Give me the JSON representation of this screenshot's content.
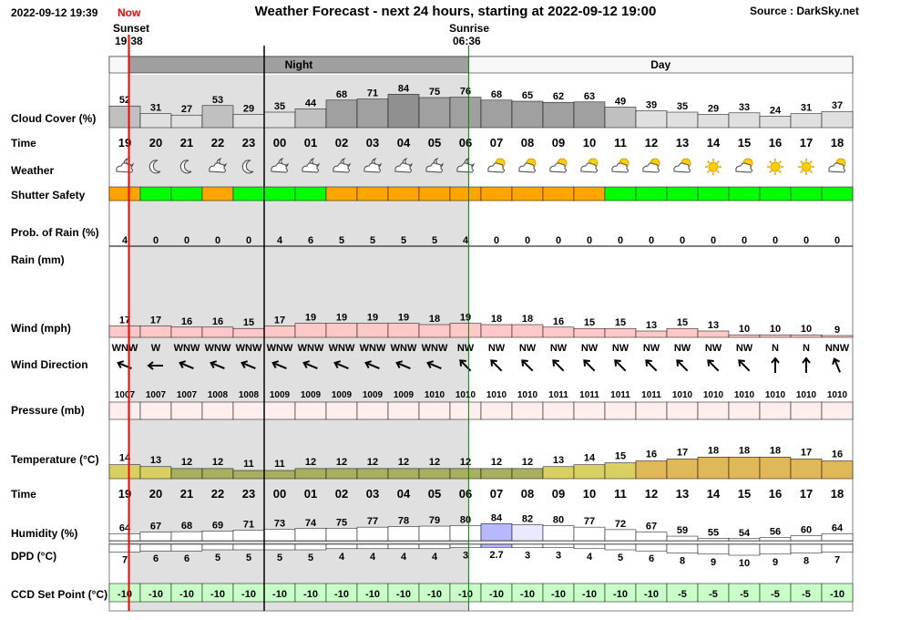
{
  "header": {
    "datetime": "2022-09-12 19:39",
    "now_label": "Now",
    "title": "Weather Forecast - next 24 hours, starting at 2022-09-12 19:00",
    "source": "Source : DarkSky.net",
    "sunset_label": "Sunset",
    "sunset_time": "19:38",
    "sunrise_label": "Sunrise",
    "sunrise_time": "06:36"
  },
  "bands": {
    "night_label": "Night",
    "day_label": "Day"
  },
  "row_labels": {
    "cloud": "Cloud Cover (%)",
    "time": "Time",
    "weather": "Weather",
    "shutter": "Shutter Safety",
    "rain_prob": "Prob. of Rain (%)",
    "rain": "Rain (mm)",
    "wind": "Wind (mph)",
    "wind_dir": "Wind Direction",
    "pressure": "Pressure (mb)",
    "temperature": "Temperature (°C)",
    "time2": "Time",
    "humidity": "Humidity (%)",
    "dpd": "DPD (°C)",
    "ccd": "CCD Set Point (°C)"
  },
  "colors": {
    "shutter_safe": "#00ff00",
    "shutter_caution": "#ffa500",
    "night_shade": "#e0e0e0",
    "night_band": "#a0a0a0",
    "day_band": "#f8f8f8",
    "now_line": "#ff0000",
    "sunrise_line": "#008000",
    "wind_fill": "#ffc8c8",
    "pressure_fill": "#ffeeee",
    "ccd_fill": "#c8ffc8",
    "temp_cool": "#a8b060",
    "temp_mild": "#d8d060",
    "temp_warm": "#e0b858"
  },
  "chart_data": {
    "type": "table",
    "hours": [
      "19",
      "20",
      "21",
      "22",
      "23",
      "00",
      "01",
      "02",
      "03",
      "04",
      "05",
      "06",
      "07",
      "08",
      "09",
      "10",
      "11",
      "12",
      "13",
      "14",
      "15",
      "16",
      "17",
      "18"
    ],
    "cloud_cover": [
      52,
      31,
      27,
      53,
      29,
      35,
      44,
      68,
      71,
      84,
      75,
      76,
      68,
      65,
      62,
      63,
      49,
      39,
      35,
      29,
      33,
      24,
      31,
      37
    ],
    "weather_icons": [
      "partly-cloudy-night",
      "clear-night",
      "clear-night",
      "partly-cloudy-night",
      "clear-night",
      "partly-cloudy-night",
      "partly-cloudy-night",
      "partly-cloudy-night",
      "partly-cloudy-night",
      "partly-cloudy-night",
      "partly-cloudy-night",
      "partly-cloudy-night",
      "partly-cloudy-day",
      "partly-cloudy-day",
      "partly-cloudy-day",
      "partly-cloudy-day",
      "partly-cloudy-day",
      "partly-cloudy-day",
      "partly-cloudy-day",
      "clear-day",
      "partly-cloudy-day",
      "clear-day",
      "clear-day",
      "partly-cloudy-day"
    ],
    "shutter_safety": [
      "caution",
      "safe",
      "safe",
      "caution",
      "safe",
      "safe",
      "safe",
      "caution",
      "caution",
      "caution",
      "caution",
      "caution",
      "caution",
      "caution",
      "caution",
      "caution",
      "safe",
      "safe",
      "safe",
      "safe",
      "safe",
      "safe",
      "safe",
      "safe"
    ],
    "rain_probability": [
      4,
      0,
      0,
      0,
      0,
      4,
      6,
      5,
      5,
      5,
      5,
      4,
      0,
      0,
      0,
      0,
      0,
      0,
      0,
      0,
      0,
      0,
      0,
      0
    ],
    "rain_mm": [
      0,
      0,
      0,
      0,
      0,
      0,
      0,
      0,
      0,
      0,
      0,
      0,
      0,
      0,
      0,
      0,
      0,
      0,
      0,
      0,
      0,
      0,
      0,
      0
    ],
    "wind_mph": [
      17,
      17,
      16,
      16,
      15,
      17,
      19,
      19,
      19,
      19,
      18,
      19,
      18,
      18,
      16,
      15,
      15,
      13,
      15,
      13,
      10,
      10,
      10,
      9
    ],
    "wind_direction": [
      "WNW",
      "W",
      "WNW",
      "WNW",
      "WNW",
      "WNW",
      "WNW",
      "WNW",
      "WNW",
      "WNW",
      "WNW",
      "NW",
      "NW",
      "NW",
      "NW",
      "NW",
      "NW",
      "NW",
      "NW",
      "NW",
      "NW",
      "N",
      "N",
      "NNW"
    ],
    "pressure_mb": [
      1007,
      1007,
      1007,
      1008,
      1008,
      1009,
      1009,
      1009,
      1009,
      1009,
      1010,
      1010,
      1010,
      1010,
      1011,
      1011,
      1011,
      1011,
      1010,
      1010,
      1010,
      1010,
      1010,
      1010
    ],
    "temperature_c": [
      14,
      13,
      12,
      12,
      11,
      11,
      12,
      12,
      12,
      12,
      12,
      12,
      12,
      12,
      13,
      14,
      15,
      16,
      17,
      18,
      18,
      18,
      17,
      16
    ],
    "humidity_pct": [
      64,
      67,
      68,
      69,
      71,
      73,
      74,
      75,
      77,
      78,
      79,
      80,
      84,
      82,
      80,
      77,
      72,
      67,
      59,
      55,
      54,
      56,
      60,
      64
    ],
    "dpd_c": [
      7,
      6,
      6,
      5,
      5,
      5,
      5,
      4,
      4,
      4,
      4,
      3,
      2.7,
      3,
      3,
      4,
      5,
      6,
      8,
      9,
      10,
      9,
      8,
      7
    ],
    "ccd_setpoint_c": [
      -10,
      -10,
      -10,
      -10,
      -10,
      -10,
      -10,
      -10,
      -10,
      -10,
      -10,
      -10,
      -10,
      -10,
      -10,
      -10,
      -10,
      -10,
      -5,
      -5,
      -5,
      -5,
      -5,
      -10
    ]
  }
}
